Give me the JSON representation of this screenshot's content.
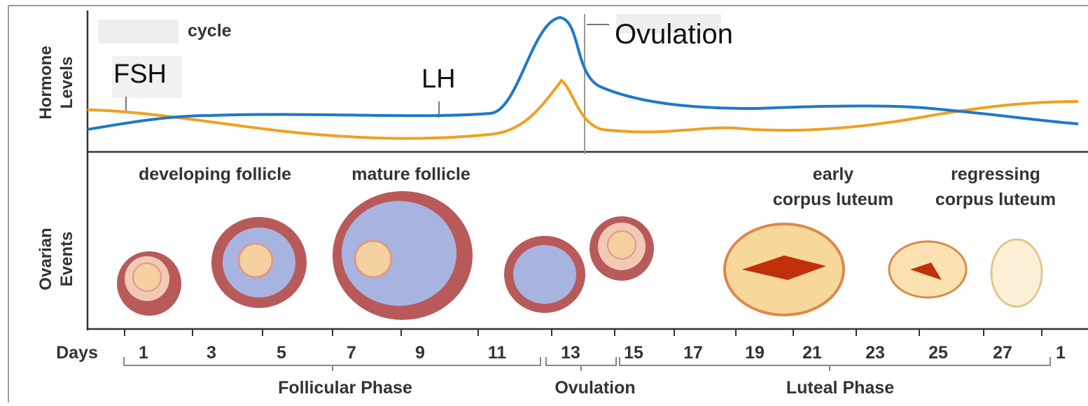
{
  "header": {
    "cycle": "cycle",
    "callout": "Ovulation"
  },
  "hormones": {
    "axis_label": [
      "Hormone",
      "Levels"
    ],
    "labels": [
      "FSH",
      "LH"
    ]
  },
  "ovarian": {
    "axis_label": [
      "Ovarian",
      "Events"
    ],
    "stages": [
      [
        "developing follicle"
      ],
      [
        "mature follicle"
      ],
      [
        "early",
        "corpus luteum"
      ],
      [
        "regressing",
        "corpus luteum"
      ]
    ]
  },
  "days": {
    "label": "Days",
    "ticks": [
      "1",
      "3",
      "5",
      "7",
      "9",
      "11",
      "13",
      "15",
      "17",
      "19",
      "21",
      "23",
      "25",
      "27",
      "1"
    ]
  },
  "phases": [
    "Follicular Phase",
    "Ovulation",
    "Luteal Phase"
  ]
}
